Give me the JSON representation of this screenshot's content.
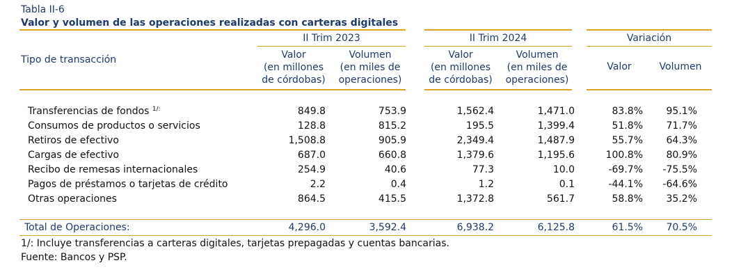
{
  "table_label": "Tabla II-6",
  "title": "Valor y volumen de las operaciones realizadas con carteras digitales",
  "headers": {
    "tipo": "Tipo de transacción",
    "group1": "II Trim 2023",
    "group2": "II Trim 2024",
    "group3": "Variación",
    "valor_lines": [
      "Valor",
      "(en millones",
      "de córdobas)"
    ],
    "volumen_lines": [
      "Volumen",
      "(en miles de",
      "operaciones)"
    ],
    "var_valor": "Valor",
    "var_volumen": "Volumen"
  },
  "rows": [
    {
      "label": "Transferencias de fondos",
      "sup": "1/:",
      "v1": "849.8",
      "v2": "753.9",
      "v3": "1,562.4",
      "v4": "1,471.0",
      "v5": "83.8%",
      "v6": "95.1%"
    },
    {
      "label": "Consumos de productos o servicios",
      "sup": "",
      "v1": "128.8",
      "v2": "815.2",
      "v3": "195.5",
      "v4": "1,399.4",
      "v5": "51.8%",
      "v6": "71.7%"
    },
    {
      "label": "Retiros de efectivo",
      "sup": "",
      "v1": "1,508.8",
      "v2": "905.9",
      "v3": "2,349.4",
      "v4": "1,487.9",
      "v5": "55.7%",
      "v6": "64.3%"
    },
    {
      "label": "Cargas de efectivo",
      "sup": "",
      "v1": "687.0",
      "v2": "660.8",
      "v3": "1,379.6",
      "v4": "1,195.6",
      "v5": "100.8%",
      "v6": "80.9%"
    },
    {
      "label": "Recibo de remesas internacionales",
      "sup": "",
      "v1": "254.9",
      "v2": "40.6",
      "v3": "77.3",
      "v4": "10.0",
      "v5": "-69.7%",
      "v6": "-75.5%"
    },
    {
      "label": "Pagos de préstamos o tarjetas de crédito",
      "sup": "",
      "v1": "2.2",
      "v2": "0.4",
      "v3": "1.2",
      "v4": "0.1",
      "v5": "-44.1%",
      "v6": "-64.6%"
    },
    {
      "label": "Otras operaciones",
      "sup": "",
      "v1": "864.5",
      "v2": "415.5",
      "v3": "1,372.8",
      "v4": "561.7",
      "v5": "58.8%",
      "v6": "35.2%"
    }
  ],
  "total": {
    "label": "Total de Operaciones:",
    "v1": "4,296.0",
    "v2": "3,592.4",
    "v3": "6,938.2",
    "v4": "6,125.8",
    "v5": "61.5%",
    "v6": "70.5%"
  },
  "note": "1/: Incluye transferencias a carteras digitales, tarjetas prepagadas y cuentas bancarias.",
  "source": "Fuente: Bancos y PSP."
}
